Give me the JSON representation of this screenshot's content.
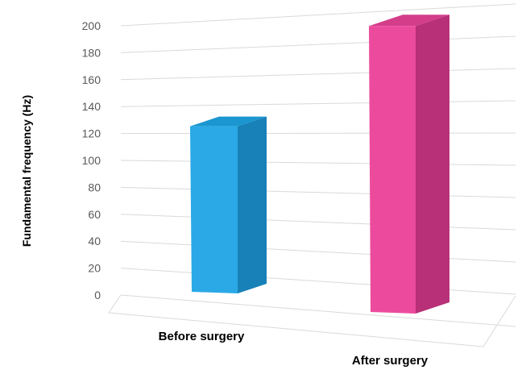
{
  "chart_data": {
    "type": "bar",
    "categories": [
      "Before surgery",
      "After surgery"
    ],
    "values": [
      120,
      190
    ],
    "ylabel": "Fundamental frequency (Hz)",
    "xlabel": "",
    "ylim": [
      0,
      200
    ],
    "yticks": [
      "0",
      "20",
      "40",
      "60",
      "80",
      "100",
      "120",
      "140",
      "160",
      "180",
      "200"
    ],
    "colors": {
      "bar1": {
        "front": "#2aa9e6",
        "side": "#1781b8",
        "top": "#1b96d0"
      },
      "bar2": {
        "front": "#ec4b9d",
        "side": "#b83077",
        "top": "#d43d8a"
      },
      "grid": "#d9d9d9"
    },
    "grid": true,
    "style": "3d-perspective"
  }
}
